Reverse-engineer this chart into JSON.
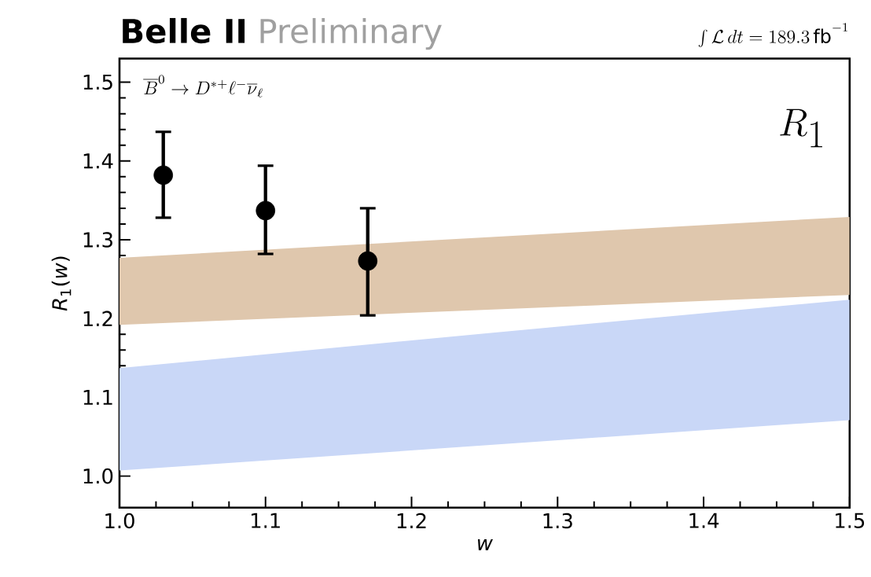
{
  "chart_data": {
    "type": "scatter",
    "title": "Belle II",
    "subtitle": "Preliminary",
    "xlabel": "w",
    "ylabel": "*R*$_{1}$(*w*)",
    "annotations": [
      "\\int\\mathcal{L}\\,dt = 189.3\\,\\mathrm{fb}^{-1}",
      "\\overline{B}^{0} \\to D^{*+}\\ell^{-}\\overline{\\nu}_{\\ell}",
      "R_1"
    ],
    "xlim": [
      1.0,
      1.5
    ],
    "ylim": [
      0.96,
      1.53
    ],
    "xticks": [
      {
        "value": 1.0,
        "label": "1.0"
      },
      1.1,
      1.2,
      1.3,
      1.4,
      1.5
    ],
    "yticks": [
      {
        "value": 1.0,
        "label": "1.0"
      },
      1.1,
      1.2,
      1.3,
      1.4,
      1.5
    ],
    "series": [
      {
        "type": "area",
        "color": "#dfc7ad",
        "x": [
          1.0,
          1.25,
          1.5
        ],
        "values": [
          null,
          null,
          null
        ],
        "lower": [
          1.192,
          1.211,
          1.23
        ],
        "upper": [
          1.277,
          1.303,
          1.329
        ]
      },
      {
        "type": "area",
        "color": "#c9d7f7",
        "x": [
          1.0,
          1.25,
          1.5
        ],
        "values": [
          null,
          null,
          null
        ],
        "lower": [
          1.007,
          1.039,
          1.071
        ],
        "upper": [
          1.137,
          1.181,
          1.224
        ]
      },
      {
        "color": "#000000",
        "x": [
          1.03,
          1.1,
          1.17
        ],
        "values": [
          1.382,
          1.337,
          1.273
        ],
        "errors": [
          [
            1.328,
            1.437
          ],
          [
            1.282,
            1.394
          ],
          [
            1.204,
            1.34
          ]
        ]
      }
    ]
  }
}
